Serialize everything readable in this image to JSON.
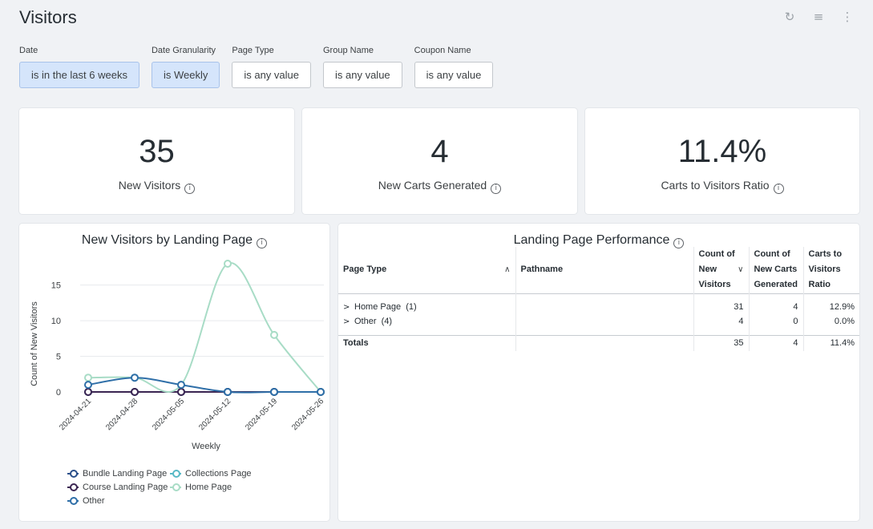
{
  "header": {
    "title": "Visitors",
    "icons": {
      "refresh": "↻",
      "filter": "≡",
      "more": "⋮"
    }
  },
  "filters": [
    {
      "label": "Date",
      "value": "is in the last 6 weeks",
      "active": true
    },
    {
      "label": "Date Granularity",
      "value": "is Weekly",
      "active": true
    },
    {
      "label": "Page Type",
      "value": "is any value",
      "active": false
    },
    {
      "label": "Group Name",
      "value": "is any value",
      "active": false
    },
    {
      "label": "Coupon Name",
      "value": "is any value",
      "active": false
    }
  ],
  "kpis": [
    {
      "value": "35",
      "label": "New Visitors"
    },
    {
      "value": "4",
      "label": "New Carts Generated"
    },
    {
      "value": "11.4%",
      "label": "Carts to Visitors Ratio"
    }
  ],
  "info_glyph": "i",
  "line_chart": {
    "title": "New Visitors by Landing Page",
    "chart_data": {
      "type": "line",
      "title": "New Visitors by Landing Page",
      "xlabel": "Weekly",
      "ylabel": "Count of New Visitors",
      "x": [
        "2024-04-21",
        "2024-04-28",
        "2024-05-05",
        "2024-05-12",
        "2024-05-19",
        "2024-05-26"
      ],
      "yticks": [
        0,
        5,
        10,
        15
      ],
      "ylim": [
        0,
        18
      ],
      "grid": true,
      "legend_position": "bottom",
      "series": [
        {
          "name": "Bundle Landing Page",
          "color": "#2a4f8a",
          "values": [
            0,
            0,
            0,
            0,
            0,
            0
          ]
        },
        {
          "name": "Collections Page",
          "color": "#58b9c6",
          "values": [
            0,
            0,
            0,
            0,
            0,
            0
          ]
        },
        {
          "name": "Course Landing Page",
          "color": "#3b2552",
          "values": [
            0,
            0,
            0,
            0,
            0,
            0
          ]
        },
        {
          "name": "Home Page",
          "color": "#a8dcc6",
          "values": [
            2,
            2,
            1,
            18,
            8,
            0
          ]
        },
        {
          "name": "Other",
          "color": "#2f6fa8",
          "values": [
            1,
            2,
            1,
            0,
            0,
            0
          ]
        }
      ]
    }
  },
  "table": {
    "title": "Landing Page Performance",
    "columns": {
      "page_type": "Page Type",
      "pathname": "Pathname",
      "visitors": [
        "Count of",
        "New",
        "Visitors"
      ],
      "carts": [
        "Count of",
        "New Carts",
        "Generated"
      ],
      "ratio": [
        "Carts to",
        "Visitors",
        "Ratio"
      ]
    },
    "sort_icons": {
      "page_type": "∧",
      "visitors": "∨"
    },
    "expand_glyph": ">",
    "rows": [
      {
        "page_type": "Home Page",
        "count": "(1)",
        "pathname": "",
        "visitors": "31",
        "carts": "4",
        "ratio": "12.9%"
      },
      {
        "page_type": "Other",
        "count": "(4)",
        "pathname": "",
        "visitors": "4",
        "carts": "0",
        "ratio": "0.0%"
      }
    ],
    "totals": {
      "label": "Totals",
      "visitors": "35",
      "carts": "4",
      "ratio": "11.4%"
    }
  }
}
